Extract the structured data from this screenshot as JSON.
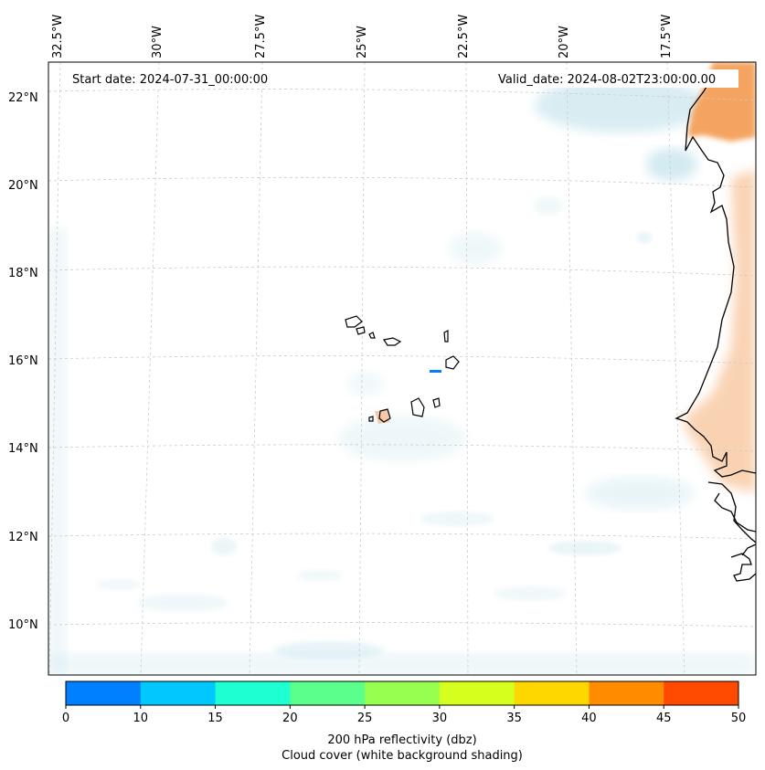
{
  "annotations": {
    "start_date": "Start date: 2024-07-31_00:00:00",
    "valid_date": "Valid_date: 2024-08-02T23:00:00.00"
  },
  "lon_labels": [
    "32.5°W",
    "30°W",
    "27.5°W",
    "25°W",
    "22.5°W",
    "20°W",
    "17.5°W"
  ],
  "lat_labels": [
    "22°N",
    "20°N",
    "18°N",
    "16°N",
    "14°N",
    "12°N",
    "10°N"
  ],
  "colorbar": {
    "ticks": [
      "0",
      "10",
      "15",
      "20",
      "25",
      "30",
      "35",
      "40",
      "45",
      "50"
    ],
    "colors": [
      "#0080ff",
      "#00c8ff",
      "#1effd2",
      "#5aff8c",
      "#96ff50",
      "#d7ff1e",
      "#ffd700",
      "#ff8c00",
      "#ff4a00"
    ],
    "label_line1": "200 hPa reflectivity (dbz)",
    "label_line2": "Cloud cover (white background shading)"
  },
  "colors": {
    "land_shade": "#f4a460",
    "cloud_shade": "#cfe8f0",
    "coast": "#000000",
    "grid": "#cccccc"
  }
}
